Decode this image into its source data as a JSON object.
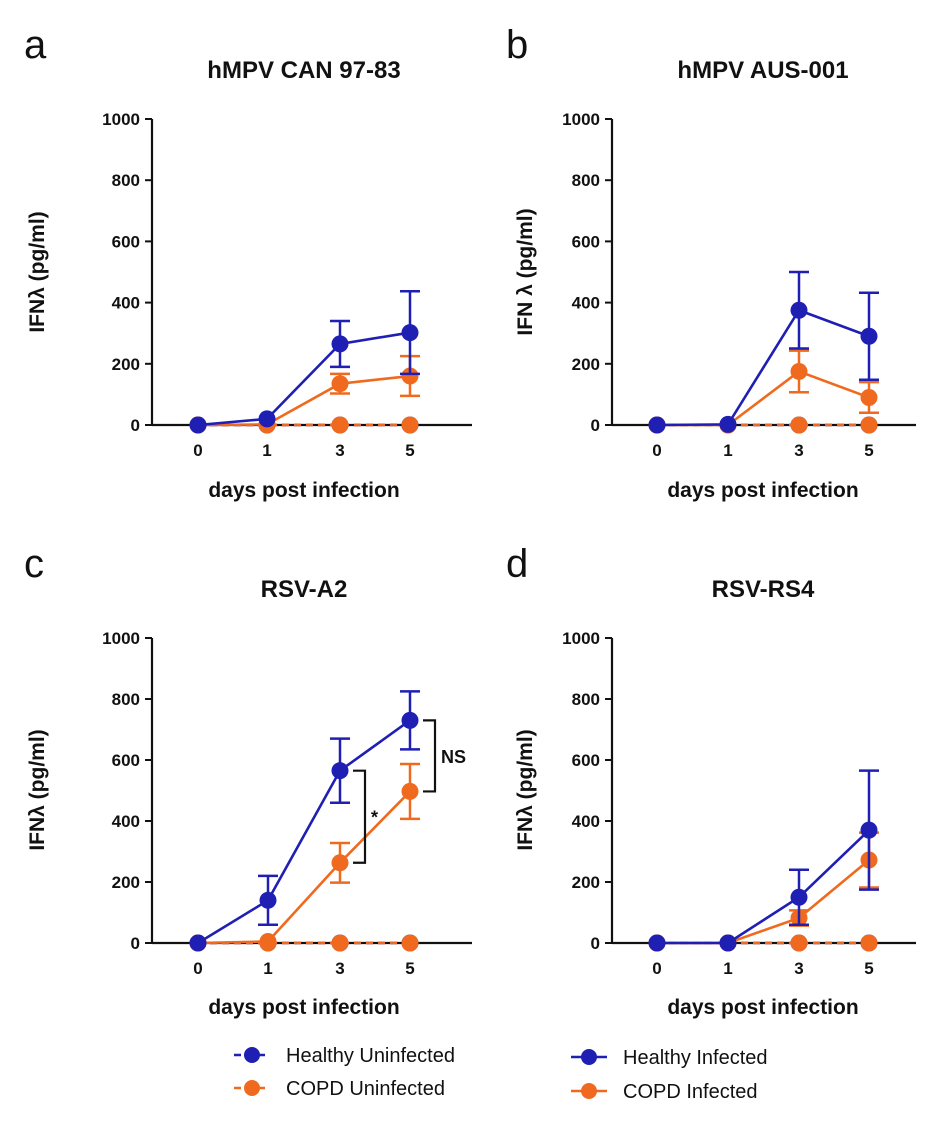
{
  "colors": {
    "healthy": "#1f1fb4",
    "copd": "#ef6a1e",
    "axis": "#111111"
  },
  "legend": {
    "healthy_uninfected": "Healthy Uninfected",
    "copd_uninfected": "COPD Uninfected",
    "healthy_infected": "Healthy Infected",
    "copd_infected": "COPD Infected"
  },
  "chart_data": [
    {
      "type": "line",
      "panel": "a",
      "title": "hMPV CAN 97-83",
      "xlabel": "days post infection",
      "ylabel": "IFNλ  (pg/ml)",
      "x": [
        0,
        1,
        3,
        5
      ],
      "x_ticks": [
        "0",
        "1",
        "3",
        "5"
      ],
      "ylim": [
        0,
        1000
      ],
      "y_ticks": [
        "0",
        "200",
        "400",
        "600",
        "800",
        "1000"
      ],
      "series": [
        {
          "name": "Healthy Uninfected",
          "style": "dashed",
          "color": "healthy",
          "values": [
            0,
            0,
            0,
            0
          ],
          "errors": [
            0,
            0,
            0,
            0
          ]
        },
        {
          "name": "COPD Uninfected",
          "style": "dashed",
          "color": "copd",
          "values": [
            0,
            0,
            0,
            0
          ],
          "errors": [
            0,
            0,
            0,
            0
          ]
        },
        {
          "name": "Healthy Infected",
          "style": "solid",
          "color": "healthy",
          "values": [
            0,
            20,
            265,
            302
          ],
          "errors": [
            0,
            0,
            75,
            135
          ]
        },
        {
          "name": "COPD Infected",
          "style": "solid",
          "color": "copd",
          "values": [
            0,
            2,
            135,
            160
          ],
          "errors": [
            0,
            0,
            32,
            65
          ]
        }
      ],
      "annotations": []
    },
    {
      "type": "line",
      "panel": "b",
      "title": "hMPV AUS-001",
      "xlabel": "days post infection",
      "ylabel": "IFN λ  (pg/ml)",
      "x": [
        0,
        1,
        3,
        5
      ],
      "x_ticks": [
        "0",
        "1",
        "3",
        "5"
      ],
      "ylim": [
        0,
        1000
      ],
      "y_ticks": [
        "0",
        "200",
        "400",
        "600",
        "800",
        "1000"
      ],
      "series": [
        {
          "name": "Healthy Uninfected",
          "style": "dashed",
          "color": "healthy",
          "values": [
            0,
            0,
            0,
            0
          ],
          "errors": [
            0,
            0,
            0,
            0
          ]
        },
        {
          "name": "COPD Uninfected",
          "style": "dashed",
          "color": "copd",
          "values": [
            0,
            0,
            0,
            0
          ],
          "errors": [
            0,
            0,
            0,
            0
          ]
        },
        {
          "name": "Healthy Infected",
          "style": "solid",
          "color": "healthy",
          "values": [
            0,
            2,
            375,
            290
          ],
          "errors": [
            0,
            0,
            125,
            142
          ]
        },
        {
          "name": "COPD Infected",
          "style": "solid",
          "color": "copd",
          "values": [
            0,
            0,
            175,
            90
          ],
          "errors": [
            0,
            0,
            68,
            50
          ]
        }
      ],
      "annotations": []
    },
    {
      "type": "line",
      "panel": "c",
      "title": "RSV-A2",
      "xlabel": "days post infection",
      "ylabel": "IFNλ  (pg/ml)",
      "x": [
        0,
        1,
        3,
        5
      ],
      "x_ticks": [
        "0",
        "1",
        "3",
        "5"
      ],
      "ylim": [
        0,
        1000
      ],
      "y_ticks": [
        "0",
        "200",
        "400",
        "600",
        "800",
        "1000"
      ],
      "series": [
        {
          "name": "Healthy Uninfected",
          "style": "dashed",
          "color": "healthy",
          "values": [
            0,
            0,
            0,
            0
          ],
          "errors": [
            0,
            0,
            0,
            0
          ]
        },
        {
          "name": "COPD Uninfected",
          "style": "dashed",
          "color": "copd",
          "values": [
            0,
            0,
            0,
            0
          ],
          "errors": [
            0,
            0,
            0,
            0
          ]
        },
        {
          "name": "Healthy Infected",
          "style": "solid",
          "color": "healthy",
          "values": [
            0,
            140,
            565,
            730
          ],
          "errors": [
            0,
            80,
            105,
            95
          ]
        },
        {
          "name": "COPD Infected",
          "style": "solid",
          "color": "copd",
          "values": [
            0,
            5,
            263,
            497
          ],
          "errors": [
            0,
            0,
            65,
            90
          ]
        }
      ],
      "annotations": [
        {
          "label": "*",
          "x": 3,
          "y_low": 263,
          "y_high": 565
        },
        {
          "label": "NS",
          "x": 5,
          "y_low": 497,
          "y_high": 730
        }
      ]
    },
    {
      "type": "line",
      "panel": "d",
      "title": "RSV-RS4",
      "xlabel": "days post infection",
      "ylabel": "IFNλ  (pg/ml)",
      "x": [
        0,
        1,
        3,
        5
      ],
      "x_ticks": [
        "0",
        "1",
        "3",
        "5"
      ],
      "ylim": [
        0,
        1000
      ],
      "y_ticks": [
        "0",
        "200",
        "400",
        "600",
        "800",
        "1000"
      ],
      "series": [
        {
          "name": "Healthy Uninfected",
          "style": "dashed",
          "color": "healthy",
          "values": [
            0,
            0,
            0,
            0
          ],
          "errors": [
            0,
            0,
            0,
            0
          ]
        },
        {
          "name": "COPD Uninfected",
          "style": "dashed",
          "color": "copd",
          "values": [
            0,
            0,
            0,
            0
          ],
          "errors": [
            0,
            0,
            0,
            0
          ]
        },
        {
          "name": "Healthy Infected",
          "style": "solid",
          "color": "healthy",
          "values": [
            0,
            0,
            150,
            370
          ],
          "errors": [
            0,
            0,
            90,
            195
          ]
        },
        {
          "name": "COPD Infected",
          "style": "solid",
          "color": "copd",
          "values": [
            0,
            0,
            82,
            272
          ],
          "errors": [
            0,
            0,
            25,
            90
          ]
        }
      ],
      "annotations": []
    }
  ]
}
